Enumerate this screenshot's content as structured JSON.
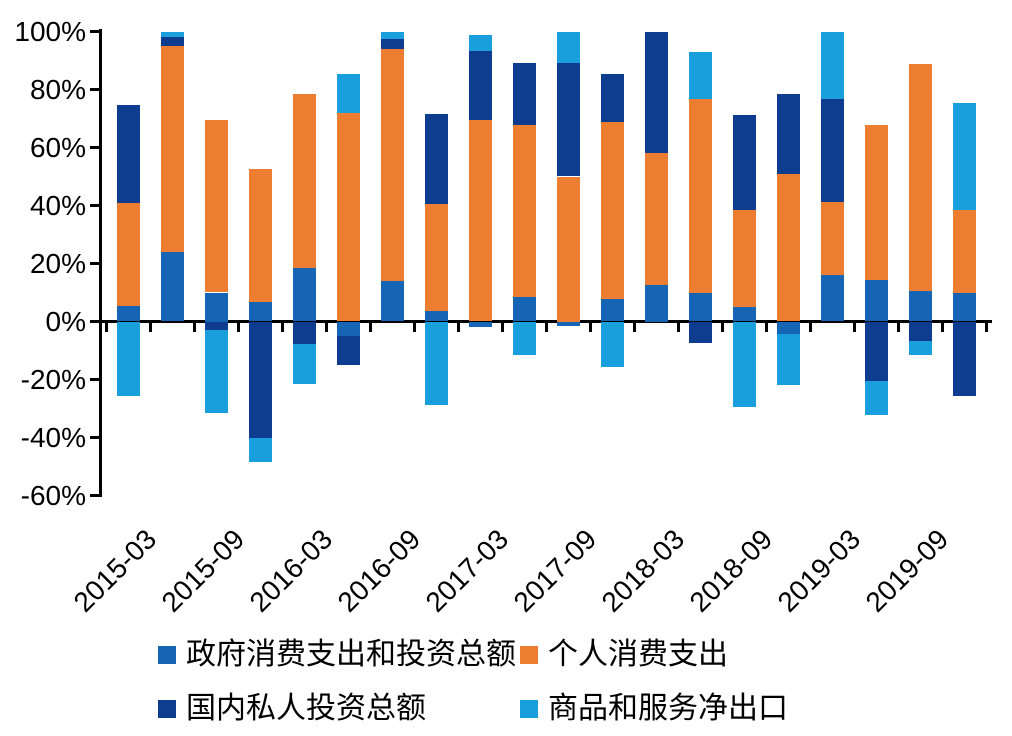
{
  "chart_data": {
    "type": "bar",
    "stacked": true,
    "title": "",
    "xlabel": "",
    "ylabel": "",
    "categories": [
      "2015-03",
      "2015-06",
      "2015-09",
      "2015-12",
      "2016-03",
      "2016-06",
      "2016-09",
      "2016-12",
      "2017-03",
      "2017-06",
      "2017-09",
      "2017-12",
      "2018-03",
      "2018-06",
      "2018-09",
      "2018-12",
      "2019-03",
      "2019-06",
      "2019-09",
      "2019-12"
    ],
    "x_axis_labels_shown": [
      "2015-03",
      "2015-09",
      "2016-03",
      "2016-09",
      "2017-03",
      "2017-09",
      "2018-03",
      "2018-09",
      "2019-03",
      "2019-09"
    ],
    "series": [
      {
        "name": "政府消费支出和投资总额",
        "color": "#1565B4",
        "values": [
          5.3,
          24,
          10,
          6.8,
          18.6,
          -5,
          14,
          3.7,
          -1.8,
          8.5,
          -1.5,
          7.6,
          12.5,
          9.9,
          5.1,
          -4.3,
          16,
          14.3,
          10.6,
          9.9
        ]
      },
      {
        "name": "个人消费支出",
        "color": "#ED7D31",
        "values": [
          35.5,
          71,
          59.4,
          45.7,
          60,
          72,
          80,
          36.8,
          69.4,
          59.2,
          50,
          61.3,
          45.7,
          66.8,
          33.5,
          51,
          25.3,
          53.4,
          78.1,
          28.7
        ]
      },
      {
        "name": "国内私人投资总额",
        "color": "#0E3D8F",
        "values": [
          33.8,
          3,
          -3,
          -40.3,
          -7.6,
          -10,
          3.5,
          30.9,
          23.8,
          21.5,
          39,
          16.3,
          41.8,
          -7.4,
          32.5,
          27.4,
          35.3,
          -20.5,
          -6.7,
          -25.7
        ]
      },
      {
        "name": "商品和服务净出口",
        "color": "#19A0DC",
        "values": [
          -25.7,
          2,
          -28.4,
          -8.1,
          -14.1,
          13.5,
          2.5,
          -28.9,
          5.5,
          -11.5,
          11,
          -15.6,
          0,
          16.3,
          -29.4,
          -17.7,
          23.4,
          -11.8,
          -4.9,
          36.8
        ]
      }
    ],
    "ylim": [
      -60,
      100
    ],
    "ytick_step": 20,
    "ytick_labels": [
      "100%",
      "80%",
      "60%",
      "40%",
      "20%",
      "0%",
      "-20%",
      "-40%",
      "-60%"
    ],
    "grid": false,
    "legend_position": "bottom"
  }
}
